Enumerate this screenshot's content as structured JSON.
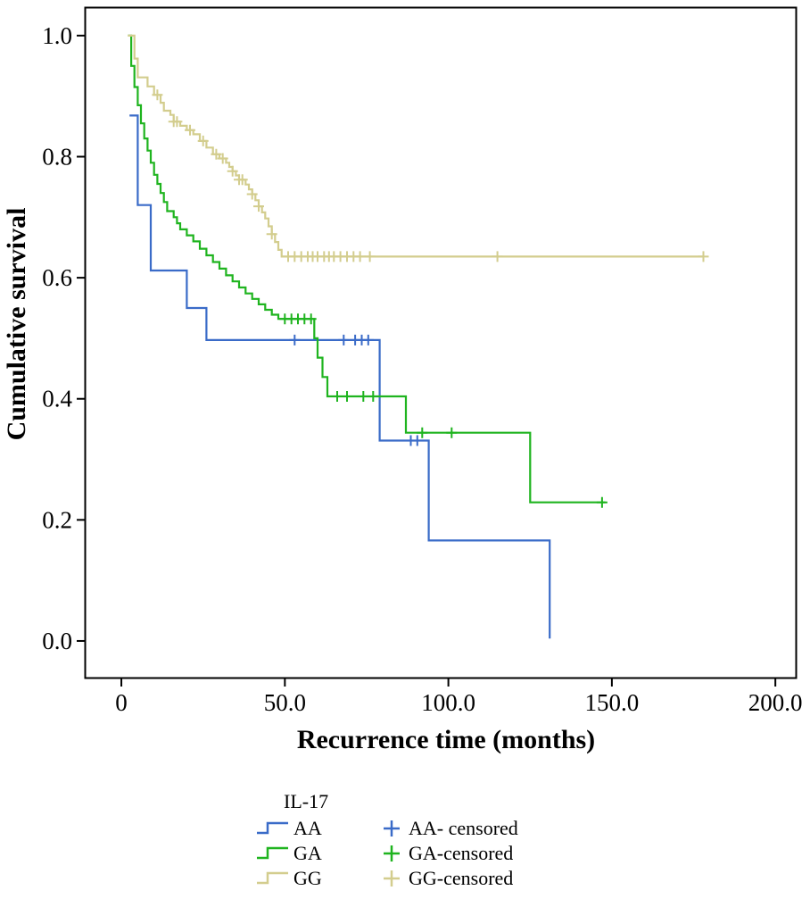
{
  "chart_data": {
    "type": "line",
    "subtype": "kaplan-meier-step",
    "title": "",
    "xlabel": "Recurrence time (months)",
    "ylabel": "Cumulative survival",
    "xlim": [
      -11.2,
      206.5
    ],
    "ylim": [
      -0.062,
      1.047
    ],
    "grid": false,
    "legend_position": "bottom-left",
    "xticks": {
      "values": [
        0,
        50,
        100,
        150,
        200
      ],
      "labels": [
        "0",
        "50.0",
        "100.0",
        "150.0",
        "200.0"
      ]
    },
    "yticks": {
      "values": [
        0.0,
        0.2,
        0.4,
        0.6,
        0.8,
        1.0
      ],
      "labels": [
        "0.0",
        "0.2",
        "0.4",
        "0.6",
        "0.8",
        "1.0"
      ]
    },
    "series": [
      {
        "name": "AA",
        "color": "#3A6BC8",
        "end_x": 131,
        "steps": [
          [
            2.5,
            0.868
          ],
          [
            5,
            0.72
          ],
          [
            9,
            0.612
          ],
          [
            20,
            0.55
          ],
          [
            26,
            0.497
          ],
          [
            79,
            0.331
          ],
          [
            94,
            0.166
          ],
          [
            131,
            0.004
          ]
        ],
        "censored": [
          [
            53,
            0.497
          ],
          [
            68,
            0.497
          ],
          [
            71.5,
            0.497
          ],
          [
            73.5,
            0.497
          ],
          [
            75.5,
            0.497
          ],
          [
            88.5,
            0.331
          ],
          [
            90.5,
            0.331
          ]
        ]
      },
      {
        "name": "GA",
        "color": "#1FB41F",
        "end_x": 148,
        "steps": [
          [
            2,
            1.0
          ],
          [
            3,
            0.95
          ],
          [
            4,
            0.915
          ],
          [
            5,
            0.885
          ],
          [
            6,
            0.855
          ],
          [
            7,
            0.83
          ],
          [
            8,
            0.81
          ],
          [
            9,
            0.79
          ],
          [
            10,
            0.77
          ],
          [
            11,
            0.755
          ],
          [
            12,
            0.74
          ],
          [
            13,
            0.725
          ],
          [
            14,
            0.71
          ],
          [
            16,
            0.7
          ],
          [
            17,
            0.69
          ],
          [
            18,
            0.68
          ],
          [
            20,
            0.67
          ],
          [
            22,
            0.66
          ],
          [
            24,
            0.648
          ],
          [
            26,
            0.637
          ],
          [
            28,
            0.626
          ],
          [
            30,
            0.615
          ],
          [
            32,
            0.604
          ],
          [
            34,
            0.594
          ],
          [
            36,
            0.584
          ],
          [
            38,
            0.574
          ],
          [
            40,
            0.565
          ],
          [
            42,
            0.556
          ],
          [
            44,
            0.547
          ],
          [
            46,
            0.539
          ],
          [
            48,
            0.532
          ],
          [
            59,
            0.5
          ],
          [
            60,
            0.468
          ],
          [
            61.5,
            0.436
          ],
          [
            63,
            0.404
          ],
          [
            87,
            0.344
          ],
          [
            125,
            0.229
          ]
        ],
        "censored": [
          [
            50,
            0.532
          ],
          [
            52,
            0.532
          ],
          [
            54,
            0.532
          ],
          [
            56,
            0.532
          ],
          [
            58,
            0.532
          ],
          [
            66,
            0.404
          ],
          [
            69,
            0.404
          ],
          [
            74,
            0.404
          ],
          [
            77,
            0.404
          ],
          [
            92,
            0.344
          ],
          [
            101,
            0.344
          ],
          [
            147,
            0.229
          ]
        ]
      },
      {
        "name": "GG",
        "color": "#D3CD8E",
        "end_x": 178,
        "steps": [
          [
            2,
            1.0
          ],
          [
            4,
            0.962
          ],
          [
            5,
            0.931
          ],
          [
            8,
            0.916
          ],
          [
            10,
            0.902
          ],
          [
            12,
            0.889
          ],
          [
            13,
            0.876
          ],
          [
            15,
            0.869
          ],
          [
            16,
            0.858
          ],
          [
            18,
            0.851
          ],
          [
            20,
            0.844
          ],
          [
            22,
            0.837
          ],
          [
            24,
            0.826
          ],
          [
            26,
            0.815
          ],
          [
            28,
            0.804
          ],
          [
            30,
            0.797
          ],
          [
            32,
            0.79
          ],
          [
            33,
            0.783
          ],
          [
            34,
            0.776
          ],
          [
            35,
            0.769
          ],
          [
            36,
            0.762
          ],
          [
            38,
            0.754
          ],
          [
            39,
            0.746
          ],
          [
            40,
            0.738
          ],
          [
            41,
            0.728
          ],
          [
            42,
            0.718
          ],
          [
            43,
            0.708
          ],
          [
            44,
            0.698
          ],
          [
            45,
            0.685
          ],
          [
            46,
            0.672
          ],
          [
            47,
            0.659
          ],
          [
            48,
            0.646
          ],
          [
            49,
            0.635
          ]
        ],
        "censored": [
          [
            11,
            0.902
          ],
          [
            16,
            0.858
          ],
          [
            17,
            0.858
          ],
          [
            21,
            0.844
          ],
          [
            25,
            0.826
          ],
          [
            29,
            0.804
          ],
          [
            31,
            0.797
          ],
          [
            34,
            0.776
          ],
          [
            36,
            0.762
          ],
          [
            37,
            0.762
          ],
          [
            40,
            0.738
          ],
          [
            42,
            0.718
          ],
          [
            46,
            0.672
          ],
          [
            51,
            0.635
          ],
          [
            53,
            0.635
          ],
          [
            55,
            0.635
          ],
          [
            57,
            0.635
          ],
          [
            58.5,
            0.635
          ],
          [
            60,
            0.635
          ],
          [
            62,
            0.635
          ],
          [
            63.5,
            0.635
          ],
          [
            65,
            0.635
          ],
          [
            67,
            0.635
          ],
          [
            69,
            0.635
          ],
          [
            71,
            0.635
          ],
          [
            73,
            0.635
          ],
          [
            76,
            0.635
          ],
          [
            115,
            0.635
          ],
          [
            178,
            0.635
          ]
        ]
      }
    ],
    "legend": {
      "title": "IL-17",
      "entries": [
        {
          "series": "AA",
          "label": "AA",
          "censored_label": "AA- censored"
        },
        {
          "series": "GA",
          "label": "GA",
          "censored_label": "GA-censored"
        },
        {
          "series": "GG",
          "label": "GG",
          "censored_label": "GG-censored"
        }
      ]
    }
  }
}
